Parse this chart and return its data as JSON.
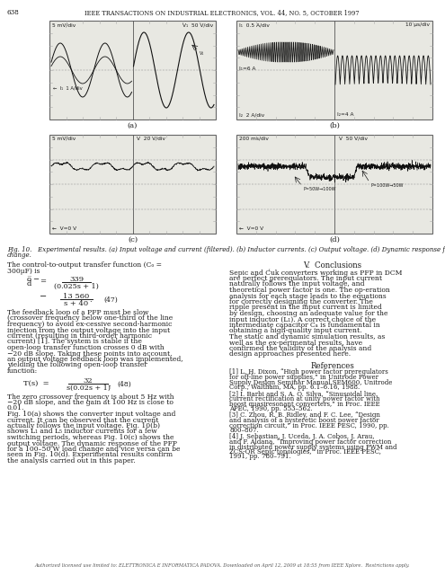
{
  "page_number": "638",
  "header": "IEEE TRANSACTIONS ON INDUSTRIAL ELECTRONICS, VOL. 44, NO. 5, OCTOBER 1997",
  "footer": "Authorized licensed use limited to: ELETTRONICA E INFORMATICA PADOVA. Downloaded on April 12, 2009 at 18:55 from IEEE Xplore.  Restrictions apply.",
  "fig_caption": "Fig. 10.   Experimental results. (a) Input voltage and current (filtered). (b) Inductor currents. (c) Output voltage. (d) Dynamic response for a load change.",
  "panel_a_tl": "5 mV/div",
  "panel_a_tr": "V₁  50 V/div",
  "panel_a_bl": "←  I₁  1 A/div",
  "panel_b_tl": "I₁  0.5 A/div",
  "panel_b_tr": "10 μs/div",
  "panel_b_bl": "I₂  2 A/div",
  "panel_b_br": "I₂=4 A",
  "panel_b_mid": "I₁=6 A",
  "panel_c_tl": "5 mV/div",
  "panel_c_tr": "V  20 V/div",
  "panel_c_bl": "←  V=0 V",
  "panel_d_tl": "200 ms/div",
  "panel_d_tr": "V  50 V/div",
  "panel_d_bl": "←  V=0 V",
  "panel_d_ann1": "P=50W→100W",
  "panel_d_ann2": "P=100W→50W",
  "section_title": "V.  Conclusions",
  "references_title": "References",
  "eq47_label": "(47)",
  "eq48_label": "(48)",
  "bg": "#ffffff",
  "panel_bg": "#e8e8e2",
  "text_dark": "#1a1a1a",
  "text_gray": "#444444",
  "line_color": "#111111",
  "border_color": "#666666",
  "grid_color": "#aaaaaa"
}
